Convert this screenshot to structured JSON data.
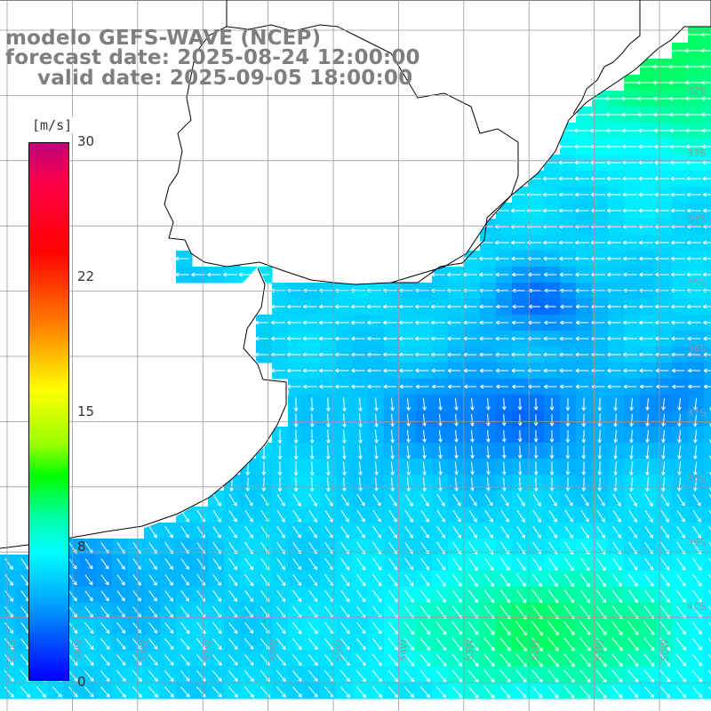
{
  "title": {
    "model": "modelo GEFS-WAVE (NCEP)",
    "forecast": "forecast date: 2025-08-24 12:00:00",
    "valid": "valid date: 2025-09-05 18:00:00"
  },
  "colorbar": {
    "unit": "[m/s]",
    "ticks": [
      "30",
      "22",
      "15",
      "8",
      "0"
    ],
    "tick_values": [
      30,
      22,
      15,
      8,
      0
    ]
  },
  "map": {
    "land_color": "#ffffff",
    "coast_color": "#000000",
    "grid_color": "#9a9a9a",
    "lat_labels": [
      "32S",
      "33S",
      "34S",
      "35S",
      "36S",
      "37S",
      "38S",
      "39S",
      "40S"
    ],
    "lon_labels": [
      "60W",
      "59W",
      "58W",
      "57W",
      "56W",
      "55W",
      "54W",
      "53W",
      "52W",
      "51W",
      "50W"
    ]
  },
  "colors": {
    "calm": "#0033ff",
    "moderate": "#00aaff",
    "fresh": "#00ffff",
    "strong": "#00ff66",
    "arrow": "#ffffff",
    "title": "#7f7f7f"
  }
}
